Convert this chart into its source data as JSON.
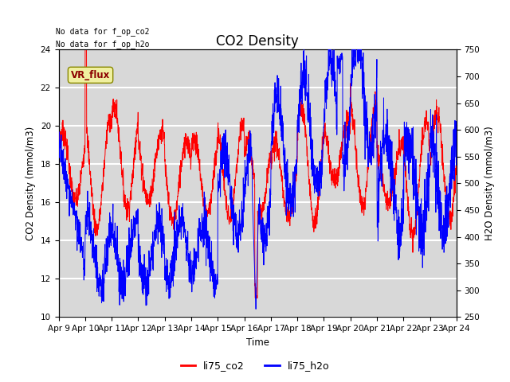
{
  "title": "CO2 Density",
  "xlabel": "Time",
  "ylabel_left": "CO2 Density (mmol/m3)",
  "ylabel_right": "H2O Density (mmol/m3)",
  "top_left_text_line1": "No data for f_op_co2",
  "top_left_text_line2": "No data for f_op_h2o",
  "vr_flux_label": "VR_flux",
  "legend_entries": [
    "li75_co2",
    "li75_h2o"
  ],
  "co2_color": "red",
  "h2o_color": "blue",
  "ylim_left": [
    10,
    24
  ],
  "ylim_right": [
    250,
    750
  ],
  "yticks_left": [
    10,
    12,
    14,
    16,
    18,
    20,
    22,
    24
  ],
  "yticks_right": [
    250,
    300,
    350,
    400,
    450,
    500,
    550,
    600,
    650,
    700,
    750
  ],
  "x_tick_labels": [
    "Apr 9",
    "Apr 10",
    "Apr 11",
    "Apr 12",
    "Apr 13",
    "Apr 14",
    "Apr 15",
    "Apr 16",
    "Apr 17",
    "Apr 18",
    "Apr 19",
    "Apr 20",
    "Apr 21",
    "Apr 22",
    "Apr 23",
    "Apr 24"
  ],
  "plot_bg_color": "#d8d8d8",
  "grid_color": "white",
  "title_fontsize": 12,
  "label_fontsize": 8.5,
  "tick_fontsize": 7.5
}
